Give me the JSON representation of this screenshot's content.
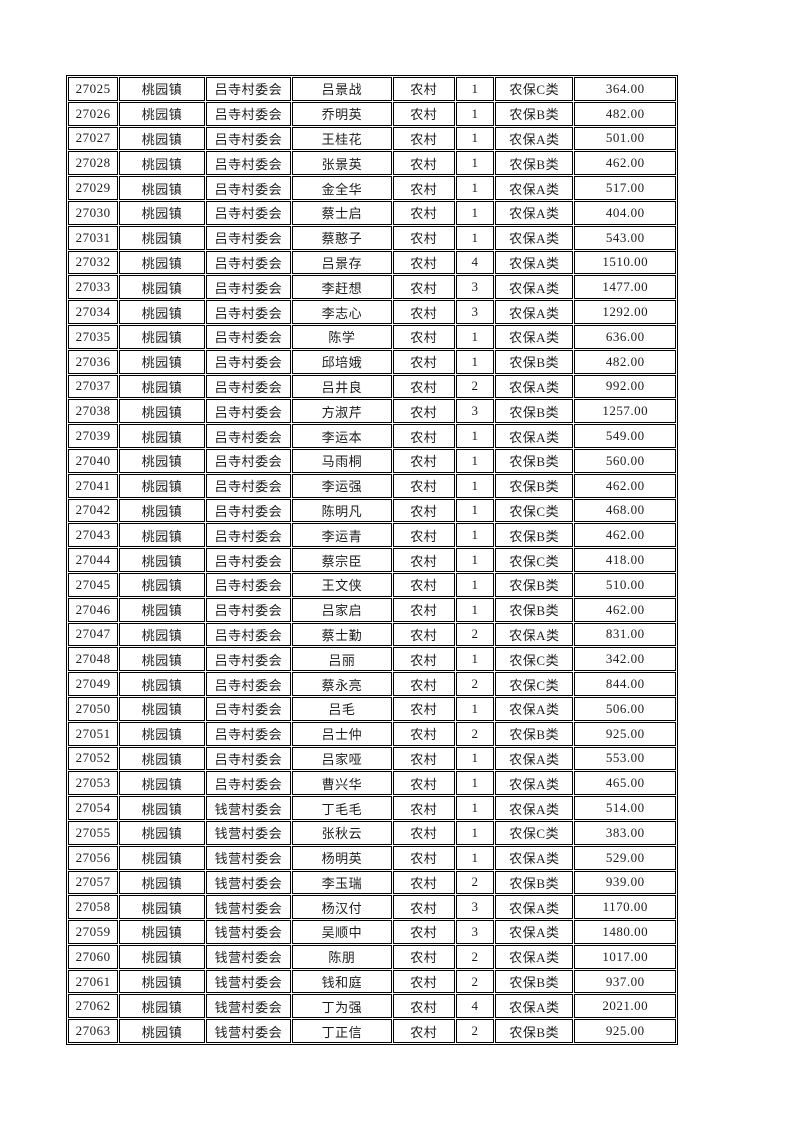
{
  "document": {
    "background_color": "#ffffff",
    "text_color": "#1c1c1c",
    "grid_border_color": "#000000",
    "town_repeated": "桃园镇",
    "residence_type_repeated": "农村",
    "village_committees_visible": [
      "吕寺村委会",
      "钱营村委会"
    ],
    "insurance_categories_visible": [
      "农保A类",
      "农保B类",
      "农保C类"
    ]
  },
  "table": {
    "column_keys": [
      "record_id",
      "town",
      "village_committee",
      "person_name",
      "residence_type",
      "person_count",
      "insurance_category",
      "amount"
    ],
    "rows": [
      [
        "27025",
        "桃园镇",
        "吕寺村委会",
        "吕景战",
        "农村",
        "1",
        "农保C类",
        "364.00"
      ],
      [
        "27026",
        "桃园镇",
        "吕寺村委会",
        "乔明英",
        "农村",
        "1",
        "农保B类",
        "482.00"
      ],
      [
        "27027",
        "桃园镇",
        "吕寺村委会",
        "王桂花",
        "农村",
        "1",
        "农保A类",
        "501.00"
      ],
      [
        "27028",
        "桃园镇",
        "吕寺村委会",
        "张景英",
        "农村",
        "1",
        "农保B类",
        "462.00"
      ],
      [
        "27029",
        "桃园镇",
        "吕寺村委会",
        "金全华",
        "农村",
        "1",
        "农保A类",
        "517.00"
      ],
      [
        "27030",
        "桃园镇",
        "吕寺村委会",
        "蔡士启",
        "农村",
        "1",
        "农保A类",
        "404.00"
      ],
      [
        "27031",
        "桃园镇",
        "吕寺村委会",
        "蔡憨子",
        "农村",
        "1",
        "农保A类",
        "543.00"
      ],
      [
        "27032",
        "桃园镇",
        "吕寺村委会",
        "吕景存",
        "农村",
        "4",
        "农保A类",
        "1510.00"
      ],
      [
        "27033",
        "桃园镇",
        "吕寺村委会",
        "李赶想",
        "农村",
        "3",
        "农保A类",
        "1477.00"
      ],
      [
        "27034",
        "桃园镇",
        "吕寺村委会",
        "李志心",
        "农村",
        "3",
        "农保A类",
        "1292.00"
      ],
      [
        "27035",
        "桃园镇",
        "吕寺村委会",
        "陈学",
        "农村",
        "1",
        "农保A类",
        "636.00"
      ],
      [
        "27036",
        "桃园镇",
        "吕寺村委会",
        "邱培娥",
        "农村",
        "1",
        "农保B类",
        "482.00"
      ],
      [
        "27037",
        "桃园镇",
        "吕寺村委会",
        "吕井良",
        "农村",
        "2",
        "农保A类",
        "992.00"
      ],
      [
        "27038",
        "桃园镇",
        "吕寺村委会",
        "方淑芹",
        "农村",
        "3",
        "农保B类",
        "1257.00"
      ],
      [
        "27039",
        "桃园镇",
        "吕寺村委会",
        "李运本",
        "农村",
        "1",
        "农保A类",
        "549.00"
      ],
      [
        "27040",
        "桃园镇",
        "吕寺村委会",
        "马雨桐",
        "农村",
        "1",
        "农保B类",
        "560.00"
      ],
      [
        "27041",
        "桃园镇",
        "吕寺村委会",
        "李运强",
        "农村",
        "1",
        "农保B类",
        "462.00"
      ],
      [
        "27042",
        "桃园镇",
        "吕寺村委会",
        "陈明凡",
        "农村",
        "1",
        "农保C类",
        "468.00"
      ],
      [
        "27043",
        "桃园镇",
        "吕寺村委会",
        "李运青",
        "农村",
        "1",
        "农保B类",
        "462.00"
      ],
      [
        "27044",
        "桃园镇",
        "吕寺村委会",
        "蔡宗臣",
        "农村",
        "1",
        "农保C类",
        "418.00"
      ],
      [
        "27045",
        "桃园镇",
        "吕寺村委会",
        "王文侠",
        "农村",
        "1",
        "农保B类",
        "510.00"
      ],
      [
        "27046",
        "桃园镇",
        "吕寺村委会",
        "吕家启",
        "农村",
        "1",
        "农保B类",
        "462.00"
      ],
      [
        "27047",
        "桃园镇",
        "吕寺村委会",
        "蔡士勤",
        "农村",
        "2",
        "农保A类",
        "831.00"
      ],
      [
        "27048",
        "桃园镇",
        "吕寺村委会",
        "吕丽",
        "农村",
        "1",
        "农保C类",
        "342.00"
      ],
      [
        "27049",
        "桃园镇",
        "吕寺村委会",
        "蔡永亮",
        "农村",
        "2",
        "农保C类",
        "844.00"
      ],
      [
        "27050",
        "桃园镇",
        "吕寺村委会",
        "吕毛",
        "农村",
        "1",
        "农保A类",
        "506.00"
      ],
      [
        "27051",
        "桃园镇",
        "吕寺村委会",
        "吕士仲",
        "农村",
        "2",
        "农保B类",
        "925.00"
      ],
      [
        "27052",
        "桃园镇",
        "吕寺村委会",
        "吕家哑",
        "农村",
        "1",
        "农保A类",
        "553.00"
      ],
      [
        "27053",
        "桃园镇",
        "吕寺村委会",
        "曹兴华",
        "农村",
        "1",
        "农保A类",
        "465.00"
      ],
      [
        "27054",
        "桃园镇",
        "钱营村委会",
        "丁毛毛",
        "农村",
        "1",
        "农保A类",
        "514.00"
      ],
      [
        "27055",
        "桃园镇",
        "钱营村委会",
        "张秋云",
        "农村",
        "1",
        "农保C类",
        "383.00"
      ],
      [
        "27056",
        "桃园镇",
        "钱营村委会",
        "杨明英",
        "农村",
        "1",
        "农保A类",
        "529.00"
      ],
      [
        "27057",
        "桃园镇",
        "钱营村委会",
        "李玉瑞",
        "农村",
        "2",
        "农保B类",
        "939.00"
      ],
      [
        "27058",
        "桃园镇",
        "钱营村委会",
        "杨汉付",
        "农村",
        "3",
        "农保A类",
        "1170.00"
      ],
      [
        "27059",
        "桃园镇",
        "钱营村委会",
        "吴顺中",
        "农村",
        "3",
        "农保A类",
        "1480.00"
      ],
      [
        "27060",
        "桃园镇",
        "钱营村委会",
        "陈朋",
        "农村",
        "2",
        "农保A类",
        "1017.00"
      ],
      [
        "27061",
        "桃园镇",
        "钱营村委会",
        "钱和庭",
        "农村",
        "2",
        "农保B类",
        "937.00"
      ],
      [
        "27062",
        "桃园镇",
        "钱营村委会",
        "丁为强",
        "农村",
        "4",
        "农保A类",
        "2021.00"
      ],
      [
        "27063",
        "桃园镇",
        "钱营村委会",
        "丁正信",
        "农村",
        "2",
        "农保B类",
        "925.00"
      ]
    ]
  }
}
